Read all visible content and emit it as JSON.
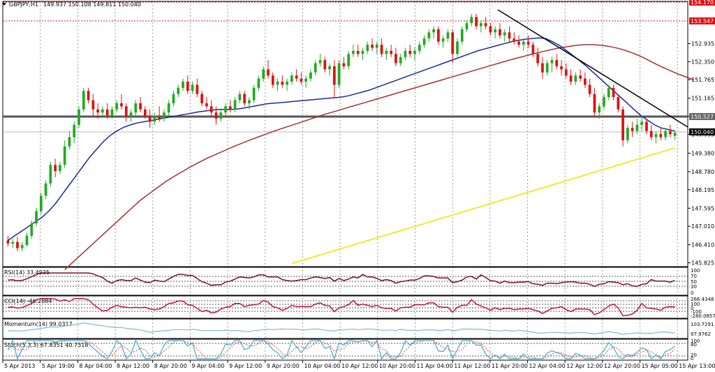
{
  "header": {
    "symbol": "GBPJPY,H1",
    "ohlc": "149.937 150.108 149.811 150.040"
  },
  "colors": {
    "bull": "#22aa22",
    "bear": "#dd1111",
    "ma_fast": "#1a2a9a",
    "ma_mid": "#a33030",
    "ma_slow": "#f2ea2a",
    "trendline": "#000000",
    "support": "#555555",
    "resistance": "#dd1111",
    "grid": "#999999",
    "rsi": "#7a1020",
    "cci": "#c0144a",
    "momentum": "#7fb7d8",
    "stoch_main": "#47a7c8",
    "stoch_signal": "#d04040",
    "current_price_box": "#000000",
    "resistance_box": "#dd1111"
  },
  "price_axis": {
    "ticks": [
      "152.935",
      "152.350",
      "151.765",
      "151.165",
      "150.580",
      "149.995",
      "149.380",
      "148.780",
      "148.195",
      "147.595",
      "147.010",
      "146.410",
      "145.825"
    ]
  },
  "time_axis": {
    "labels": [
      "5 Apr 2013",
      "5 Apr 19:00",
      "8 Apr 04:00",
      "8 Apr 12:00",
      "8 Apr 20:00",
      "9 Apr 04:00",
      "9 Apr 12:00",
      "9 Apr 20:00",
      "10 Apr 04:00",
      "10 Apr 12:00",
      "10 Apr 20:00",
      "11 Apr 04:00",
      "11 Apr 12:00",
      "11 Apr 20:00",
      "12 Apr 04:00",
      "12 Apr 12:00",
      "12 Apr 20:00",
      "15 Apr 05:00",
      "15 Apr 13:00"
    ]
  },
  "price_tags": {
    "top": "154.170",
    "resistance": "153.547",
    "support": "150.527",
    "current": "150.040"
  },
  "indicators": {
    "rsi": {
      "label": "RSI(14) 33.4935",
      "ticks": [
        "100",
        "70",
        "50",
        "30",
        "0"
      ]
    },
    "cci": {
      "label": "CCI(14) -46.2884",
      "ticks": [
        "266.4348",
        "100",
        "0",
        "-100",
        "-280.0857"
      ]
    },
    "momentum": {
      "label": "Momentum(14) 99.0317",
      "ticks": [
        "103.7291",
        "97.9762"
      ]
    },
    "stoch": {
      "label": "Stoch(5,3,3) 67.8351 40.7318",
      "ticks": [
        "100",
        "80",
        "20",
        "0"
      ]
    }
  },
  "chart_data": {
    "type": "candlestick",
    "title": "GBPJPY,H1",
    "ylim": [
      145.7,
      154.35
    ],
    "candles": [
      [
        146.55,
        146.7,
        146.35,
        146.45
      ],
      [
        146.45,
        146.6,
        146.3,
        146.5
      ],
      [
        146.5,
        146.65,
        146.2,
        146.3
      ],
      [
        146.3,
        146.5,
        146.2,
        146.4
      ],
      [
        146.4,
        146.8,
        146.35,
        146.7
      ],
      [
        146.7,
        147.2,
        146.6,
        147.1
      ],
      [
        147.1,
        147.6,
        147.0,
        147.5
      ],
      [
        147.5,
        148.1,
        147.4,
        148.0
      ],
      [
        148.0,
        148.5,
        147.9,
        148.4
      ],
      [
        148.4,
        149.1,
        148.3,
        149.0
      ],
      [
        149.0,
        149.2,
        148.6,
        148.8
      ],
      [
        148.8,
        149.1,
        148.7,
        149.0
      ],
      [
        149.0,
        149.8,
        148.9,
        149.6
      ],
      [
        149.6,
        150.1,
        149.5,
        149.9
      ],
      [
        149.9,
        150.4,
        149.7,
        150.3
      ],
      [
        150.3,
        150.9,
        150.2,
        150.8
      ],
      [
        150.8,
        151.5,
        150.7,
        151.4
      ],
      [
        151.4,
        151.5,
        151.0,
        151.1
      ],
      [
        151.1,
        151.3,
        150.6,
        150.8
      ],
      [
        150.8,
        151.0,
        150.5,
        150.7
      ],
      [
        150.7,
        150.9,
        150.6,
        150.8
      ],
      [
        150.8,
        151.0,
        150.5,
        150.6
      ],
      [
        150.6,
        150.9,
        150.5,
        150.8
      ],
      [
        150.8,
        151.1,
        150.7,
        151.0
      ],
      [
        151.0,
        151.3,
        150.8,
        150.9
      ],
      [
        150.9,
        151.0,
        150.4,
        150.6
      ],
      [
        150.6,
        150.8,
        150.4,
        150.7
      ],
      [
        150.7,
        151.1,
        150.6,
        151.0
      ],
      [
        151.0,
        151.2,
        150.7,
        150.8
      ],
      [
        150.8,
        150.9,
        150.5,
        150.6
      ],
      [
        150.6,
        150.8,
        150.2,
        150.4
      ],
      [
        150.4,
        150.7,
        150.3,
        150.6
      ],
      [
        150.6,
        150.9,
        150.4,
        150.5
      ],
      [
        150.5,
        150.8,
        150.4,
        150.7
      ],
      [
        150.7,
        151.1,
        150.6,
        151.0
      ],
      [
        151.0,
        151.4,
        150.9,
        151.3
      ],
      [
        151.3,
        151.6,
        151.2,
        151.5
      ],
      [
        151.5,
        151.8,
        151.4,
        151.7
      ],
      [
        151.7,
        151.9,
        151.3,
        151.4
      ],
      [
        151.4,
        151.7,
        151.3,
        151.6
      ],
      [
        151.6,
        151.8,
        151.2,
        151.3
      ],
      [
        151.3,
        151.4,
        150.9,
        151.0
      ],
      [
        151.0,
        151.2,
        150.8,
        150.9
      ],
      [
        150.9,
        151.1,
        150.6,
        150.7
      ],
      [
        150.7,
        150.9,
        150.3,
        150.5
      ],
      [
        150.5,
        150.8,
        150.4,
        150.7
      ],
      [
        150.7,
        151.0,
        150.6,
        150.9
      ],
      [
        150.9,
        151.1,
        150.7,
        150.8
      ],
      [
        150.8,
        151.2,
        150.7,
        151.1
      ],
      [
        151.1,
        151.4,
        151.0,
        151.3
      ],
      [
        151.3,
        151.4,
        150.9,
        151.0
      ],
      [
        151.0,
        151.2,
        150.8,
        151.1
      ],
      [
        151.1,
        151.6,
        151.0,
        151.5
      ],
      [
        151.5,
        151.9,
        151.4,
        151.8
      ],
      [
        151.8,
        152.2,
        151.7,
        152.1
      ],
      [
        152.1,
        152.4,
        151.8,
        151.9
      ],
      [
        151.9,
        152.0,
        151.5,
        151.6
      ],
      [
        151.6,
        151.8,
        151.4,
        151.7
      ],
      [
        151.7,
        151.9,
        151.5,
        151.6
      ],
      [
        151.6,
        151.8,
        151.4,
        151.7
      ],
      [
        151.7,
        152.0,
        151.6,
        151.9
      ],
      [
        151.9,
        152.1,
        151.7,
        151.8
      ],
      [
        151.8,
        152.0,
        151.6,
        151.7
      ],
      [
        151.7,
        151.9,
        151.5,
        151.8
      ],
      [
        151.8,
        152.1,
        151.7,
        152.0
      ],
      [
        152.0,
        152.4,
        151.9,
        152.3
      ],
      [
        152.3,
        152.6,
        152.2,
        152.4
      ],
      [
        152.4,
        152.5,
        152.0,
        152.1
      ],
      [
        152.1,
        152.3,
        151.9,
        152.2
      ],
      [
        152.2,
        152.4,
        151.2,
        151.6
      ],
      [
        151.6,
        152.4,
        151.5,
        152.3
      ],
      [
        152.3,
        152.5,
        152.1,
        152.2
      ],
      [
        152.2,
        152.7,
        152.1,
        152.6
      ],
      [
        152.6,
        152.9,
        152.5,
        152.7
      ],
      [
        152.7,
        152.9,
        152.5,
        152.6
      ],
      [
        152.6,
        152.8,
        152.4,
        152.7
      ],
      [
        152.7,
        153.0,
        152.6,
        152.9
      ],
      [
        152.9,
        153.1,
        152.7,
        152.8
      ],
      [
        152.8,
        153.0,
        152.6,
        152.9
      ],
      [
        152.9,
        153.1,
        152.5,
        152.6
      ],
      [
        152.6,
        152.8,
        152.4,
        152.7
      ],
      [
        152.7,
        152.9,
        152.5,
        152.6
      ],
      [
        152.6,
        152.8,
        152.2,
        152.3
      ],
      [
        152.3,
        152.6,
        152.2,
        152.5
      ],
      [
        152.5,
        152.8,
        152.4,
        152.7
      ],
      [
        152.7,
        152.9,
        152.5,
        152.6
      ],
      [
        152.6,
        152.8,
        152.4,
        152.7
      ],
      [
        152.7,
        153.0,
        152.6,
        152.9
      ],
      [
        152.9,
        153.2,
        152.8,
        153.1
      ],
      [
        153.1,
        153.4,
        153.0,
        153.3
      ],
      [
        153.3,
        153.5,
        153.1,
        153.4
      ],
      [
        153.4,
        153.5,
        152.9,
        153.0
      ],
      [
        153.0,
        153.2,
        152.8,
        153.1
      ],
      [
        153.1,
        153.4,
        153.0,
        153.3
      ],
      [
        153.3,
        153.4,
        152.3,
        152.6
      ],
      [
        152.6,
        153.1,
        152.5,
        153.0
      ],
      [
        153.0,
        153.5,
        152.9,
        153.4
      ],
      [
        153.4,
        153.7,
        153.3,
        153.6
      ],
      [
        153.6,
        153.9,
        153.5,
        153.8
      ],
      [
        153.8,
        153.9,
        153.4,
        153.5
      ],
      [
        153.5,
        153.7,
        153.3,
        153.6
      ],
      [
        153.6,
        153.8,
        153.4,
        153.5
      ],
      [
        153.5,
        153.6,
        153.2,
        153.3
      ],
      [
        153.3,
        153.5,
        153.1,
        153.4
      ],
      [
        153.4,
        153.6,
        153.1,
        153.2
      ],
      [
        153.2,
        153.4,
        153.0,
        153.3
      ],
      [
        153.3,
        153.5,
        153.0,
        153.1
      ],
      [
        153.1,
        153.3,
        152.9,
        153.0
      ],
      [
        153.0,
        153.2,
        152.8,
        152.9
      ],
      [
        152.9,
        153.1,
        152.7,
        153.0
      ],
      [
        153.0,
        153.2,
        152.8,
        152.9
      ],
      [
        152.9,
        153.0,
        152.5,
        152.6
      ],
      [
        152.6,
        152.8,
        152.2,
        152.3
      ],
      [
        152.3,
        152.5,
        151.8,
        152.0
      ],
      [
        152.0,
        152.4,
        151.9,
        152.3
      ],
      [
        152.3,
        152.5,
        152.0,
        152.4
      ],
      [
        152.4,
        152.6,
        152.1,
        152.2
      ],
      [
        152.2,
        152.4,
        151.9,
        152.1
      ],
      [
        152.1,
        152.3,
        151.8,
        151.9
      ],
      [
        151.9,
        152.1,
        151.6,
        151.7
      ],
      [
        151.7,
        152.0,
        151.6,
        151.9
      ],
      [
        151.9,
        152.1,
        151.7,
        151.8
      ],
      [
        151.8,
        152.0,
        151.5,
        151.6
      ],
      [
        151.6,
        151.8,
        151.2,
        151.3
      ],
      [
        151.3,
        151.5,
        150.6,
        150.7
      ],
      [
        150.7,
        151.0,
        150.5,
        150.9
      ],
      [
        150.9,
        151.3,
        150.8,
        151.2
      ],
      [
        151.2,
        151.6,
        151.1,
        151.5
      ],
      [
        151.5,
        151.6,
        151.1,
        151.2
      ],
      [
        151.2,
        151.3,
        150.7,
        150.8
      ],
      [
        150.8,
        150.9,
        149.6,
        149.8
      ],
      [
        149.8,
        150.3,
        149.7,
        150.2
      ],
      [
        150.2,
        150.4,
        149.9,
        150.1
      ],
      [
        150.1,
        150.5,
        150.0,
        150.3
      ],
      [
        150.3,
        150.6,
        150.1,
        150.4
      ],
      [
        150.4,
        150.5,
        150.0,
        150.1
      ],
      [
        150.1,
        150.3,
        149.8,
        149.9
      ],
      [
        149.9,
        150.1,
        149.7,
        150.0
      ],
      [
        150.0,
        150.2,
        149.8,
        149.9
      ],
      [
        149.9,
        150.2,
        149.8,
        150.1
      ],
      [
        150.1,
        150.3,
        149.9,
        150.0
      ],
      [
        149.94,
        150.11,
        149.81,
        150.04
      ]
    ],
    "ma_fast": [
      146.55,
      146.7,
      146.85,
      147.0,
      147.15,
      147.3,
      147.5,
      147.75,
      148.05,
      148.35,
      148.65,
      148.95,
      149.25,
      149.5,
      149.75,
      149.95,
      150.1,
      150.22,
      150.3,
      150.36,
      150.4,
      150.44,
      150.48,
      150.52,
      150.56,
      150.6,
      150.64,
      150.68,
      150.72,
      150.75,
      150.78,
      150.8,
      150.8,
      150.8,
      150.82,
      150.86,
      150.9,
      150.94,
      150.98,
      151.0,
      151.02,
      151.04,
      151.06,
      151.08,
      151.1,
      151.12,
      151.14,
      151.16,
      151.18,
      151.2,
      151.24,
      151.3,
      151.36,
      151.42,
      151.5,
      151.58,
      151.66,
      151.74,
      151.82,
      151.9,
      151.98,
      152.06,
      152.14,
      152.22,
      152.3,
      152.38,
      152.46,
      152.54,
      152.62,
      152.7,
      152.76,
      152.82,
      152.88,
      152.94,
      153.0,
      153.04,
      153.08,
      153.1,
      153.12,
      153.1,
      153.0,
      152.88,
      152.72,
      152.55,
      152.38,
      152.2,
      152.0,
      151.8,
      151.6,
      151.4,
      151.2,
      151.0,
      150.8,
      150.6,
      150.45,
      150.3,
      150.2,
      150.15,
      150.1
    ],
    "ma_mid": [
      145.6,
      145.85,
      146.1,
      146.35,
      146.6,
      146.85,
      147.1,
      147.35,
      147.6,
      147.85,
      148.05,
      148.25,
      148.45,
      148.62,
      148.78,
      148.94,
      149.08,
      149.22,
      149.34,
      149.46,
      149.58,
      149.69,
      149.8,
      149.9,
      150.0,
      150.1,
      150.19,
      150.28,
      150.37,
      150.46,
      150.55,
      150.64,
      150.72,
      150.8,
      150.88,
      150.96,
      151.04,
      151.12,
      151.2,
      151.28,
      151.36,
      151.44,
      151.52,
      151.6,
      151.68,
      151.76,
      151.84,
      151.92,
      152.0,
      152.08,
      152.16,
      152.24,
      152.32,
      152.4,
      152.47,
      152.54,
      152.61,
      152.68,
      152.74,
      152.8,
      152.84,
      152.88,
      152.9,
      152.9,
      152.88,
      152.84,
      152.78,
      152.7,
      152.6,
      152.48,
      152.34,
      152.2,
      152.08,
      151.96,
      151.86,
      151.76
    ],
    "ma_slow": [
      145.8,
      145.95,
      146.1,
      146.25,
      146.4,
      146.55,
      146.7,
      146.85,
      147.0,
      147.15,
      147.3,
      147.45,
      147.6,
      147.75,
      147.9,
      148.05,
      148.2,
      148.35,
      148.5,
      148.65,
      148.8,
      148.95,
      149.1,
      149.25,
      149.4,
      149.55
    ]
  }
}
